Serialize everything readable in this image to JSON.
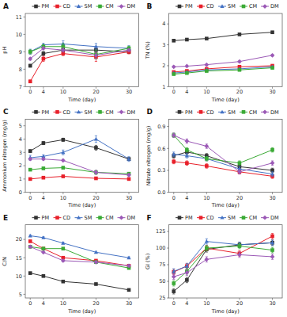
{
  "chart_data": [
    {
      "type": "line",
      "title": "A",
      "xlabel": "Time (day)",
      "ylabel": "pH",
      "x": [
        0,
        4,
        10,
        20,
        30
      ],
      "xlim": [
        -1.5,
        33
      ],
      "xticks": [
        0,
        4,
        10,
        20,
        30
      ],
      "ylim": [
        7.0,
        11.2
      ],
      "yticks": [
        7,
        8,
        9,
        10,
        11
      ],
      "grid": false,
      "legend": "top",
      "series": [
        {
          "name": "PM",
          "color": "#333333",
          "marker": "square",
          "values": [
            8.2,
            8.9,
            9.1,
            9.1,
            9.0
          ],
          "errors": [
            0.08,
            0.12,
            0.1,
            0.15,
            0.1
          ]
        },
        {
          "name": "CD",
          "color": "#e8202a",
          "marker": "square",
          "values": [
            7.3,
            8.6,
            8.9,
            8.7,
            9.0
          ],
          "errors": [
            0.08,
            0.15,
            0.12,
            0.25,
            0.12
          ]
        },
        {
          "name": "SM",
          "color": "#4472c4",
          "marker": "triangle",
          "values": [
            9.0,
            9.4,
            9.45,
            9.3,
            9.2
          ],
          "errors": [
            0.15,
            0.08,
            0.18,
            0.18,
            0.15
          ]
        },
        {
          "name": "CM",
          "color": "#3aaa35",
          "marker": "square",
          "values": [
            9.0,
            9.3,
            9.3,
            8.85,
            9.2
          ],
          "errors": [
            0.12,
            0.12,
            0.18,
            0.25,
            0.12
          ]
        },
        {
          "name": "DM",
          "color": "#9b59b6",
          "marker": "diamond",
          "values": [
            8.6,
            9.2,
            9.1,
            8.8,
            9.1
          ],
          "errors": [
            0.08,
            0.08,
            0.12,
            0.18,
            0.08
          ]
        }
      ]
    },
    {
      "type": "line",
      "title": "B",
      "xlabel": "Time (day)",
      "ylabel": "TN (%)",
      "x": [
        0,
        4,
        10,
        20,
        30
      ],
      "xlim": [
        -1.5,
        33
      ],
      "xticks": [
        0,
        4,
        10,
        20,
        30
      ],
      "ylim": [
        1.0,
        4.5
      ],
      "yticks": [
        1,
        2,
        3,
        4
      ],
      "grid": false,
      "legend": "top",
      "series": [
        {
          "name": "PM",
          "color": "#333333",
          "marker": "square",
          "values": [
            3.2,
            3.25,
            3.3,
            3.5,
            3.6
          ],
          "errors": [
            0.04,
            0.04,
            0.04,
            0.05,
            0.05
          ]
        },
        {
          "name": "CD",
          "color": "#e8202a",
          "marker": "square",
          "values": [
            1.7,
            1.75,
            1.85,
            1.95,
            2.0
          ],
          "errors": [
            0.04,
            0.04,
            0.04,
            0.04,
            0.04
          ]
        },
        {
          "name": "SM",
          "color": "#4472c4",
          "marker": "triangle",
          "values": [
            1.65,
            1.7,
            1.8,
            1.85,
            1.95
          ],
          "errors": [
            0.04,
            0.04,
            0.04,
            0.04,
            0.04
          ]
        },
        {
          "name": "CM",
          "color": "#3aaa35",
          "marker": "square",
          "values": [
            1.6,
            1.65,
            1.75,
            1.8,
            1.9
          ],
          "errors": [
            0.04,
            0.04,
            0.04,
            0.04,
            0.04
          ]
        },
        {
          "name": "DM",
          "color": "#9b59b6",
          "marker": "diamond",
          "values": [
            1.95,
            1.98,
            2.05,
            2.2,
            2.5
          ],
          "errors": [
            0.04,
            0.04,
            0.04,
            0.05,
            0.05
          ]
        }
      ]
    },
    {
      "type": "line",
      "title": "C",
      "xlabel": "Time (day)",
      "ylabel": "Ammonium nitrogen (mg/g)",
      "x": [
        0,
        4,
        10,
        20,
        30
      ],
      "xlim": [
        -1.5,
        33
      ],
      "xticks": [
        0,
        4,
        10,
        20,
        30
      ],
      "ylim": [
        0,
        5.5
      ],
      "yticks": [
        0,
        1,
        2,
        3,
        4,
        5
      ],
      "grid": false,
      "legend": "top",
      "series": [
        {
          "name": "PM",
          "color": "#333333",
          "marker": "square",
          "values": [
            3.1,
            3.7,
            3.95,
            3.35,
            2.5
          ],
          "errors": [
            0.1,
            0.12,
            0.12,
            0.18,
            0.1
          ]
        },
        {
          "name": "CD",
          "color": "#e8202a",
          "marker": "square",
          "values": [
            1.0,
            1.1,
            1.2,
            1.05,
            1.0
          ],
          "errors": [
            0.08,
            0.08,
            0.08,
            0.08,
            0.08
          ]
        },
        {
          "name": "SM",
          "color": "#4472c4",
          "marker": "triangle",
          "values": [
            2.6,
            2.7,
            3.0,
            4.0,
            2.5
          ],
          "errors": [
            0.18,
            0.12,
            0.18,
            0.25,
            0.18
          ]
        },
        {
          "name": "CM",
          "color": "#3aaa35",
          "marker": "square",
          "values": [
            1.7,
            1.8,
            1.85,
            1.5,
            1.4
          ],
          "errors": [
            0.08,
            0.08,
            0.08,
            0.15,
            0.08
          ]
        },
        {
          "name": "DM",
          "color": "#9b59b6",
          "marker": "diamond",
          "values": [
            2.5,
            2.5,
            2.4,
            1.5,
            1.3
          ],
          "errors": [
            0.08,
            0.08,
            0.08,
            0.15,
            0.12
          ]
        }
      ]
    },
    {
      "type": "line",
      "title": "D",
      "xlabel": "Time (day)",
      "ylabel": "Nitrate nitrogen (mg/g)",
      "x": [
        0,
        4,
        10,
        20,
        30
      ],
      "xlim": [
        -1.5,
        33
      ],
      "xticks": [
        0,
        4,
        10,
        20,
        30
      ],
      "ylim": [
        0.0,
        1.0
      ],
      "yticks": [
        {
          "value": 0.0,
          "label": "0.0"
        },
        0.3,
        0.6,
        0.9
      ],
      "grid": false,
      "legend": "top",
      "series": [
        {
          "name": "PM",
          "color": "#333333",
          "marker": "square",
          "values": [
            0.5,
            0.55,
            0.5,
            0.35,
            0.3
          ],
          "errors": [
            0.03,
            0.03,
            0.03,
            0.03,
            0.03
          ]
        },
        {
          "name": "CD",
          "color": "#e8202a",
          "marker": "square",
          "values": [
            0.42,
            0.4,
            0.36,
            0.28,
            0.22
          ],
          "errors": [
            0.03,
            0.03,
            0.03,
            0.03,
            0.03
          ]
        },
        {
          "name": "SM",
          "color": "#4472c4",
          "marker": "triangle",
          "values": [
            0.52,
            0.5,
            0.46,
            0.32,
            0.25
          ],
          "errors": [
            0.03,
            0.03,
            0.03,
            0.03,
            0.03
          ]
        },
        {
          "name": "CM",
          "color": "#3aaa35",
          "marker": "square",
          "values": [
            0.78,
            0.58,
            0.46,
            0.4,
            0.58
          ],
          "errors": [
            0.03,
            0.03,
            0.03,
            0.03,
            0.03
          ]
        },
        {
          "name": "DM",
          "color": "#9b59b6",
          "marker": "diamond",
          "values": [
            0.78,
            0.7,
            0.63,
            0.28,
            0.4
          ],
          "errors": [
            0.03,
            0.03,
            0.03,
            0.03,
            0.03
          ]
        }
      ]
    },
    {
      "type": "line",
      "title": "E",
      "xlabel": "Time (day)",
      "ylabel": "C/N",
      "x": [
        0,
        4,
        10,
        20,
        30
      ],
      "xlim": [
        -1.5,
        33
      ],
      "xticks": [
        0,
        4,
        10,
        20,
        30
      ],
      "ylim": [
        4,
        24
      ],
      "yticks": [
        5,
        10,
        15,
        20
      ],
      "grid": false,
      "legend": "top",
      "series": [
        {
          "name": "PM",
          "color": "#333333",
          "marker": "square",
          "values": [
            10.8,
            10.0,
            8.5,
            7.8,
            6.2
          ],
          "errors": [
            0.25,
            0.25,
            0.25,
            0.25,
            0.25
          ]
        },
        {
          "name": "CD",
          "color": "#e8202a",
          "marker": "square",
          "values": [
            19.5,
            17.5,
            15.0,
            14.2,
            12.8
          ],
          "errors": [
            0.25,
            0.25,
            0.25,
            0.25,
            0.25
          ]
        },
        {
          "name": "SM",
          "color": "#4472c4",
          "marker": "triangle",
          "values": [
            21.0,
            20.5,
            19.0,
            16.5,
            15.0
          ],
          "errors": [
            0.25,
            0.25,
            0.25,
            0.25,
            0.25
          ]
        },
        {
          "name": "CM",
          "color": "#3aaa35",
          "marker": "square",
          "values": [
            18.0,
            17.5,
            17.5,
            13.8,
            12.2
          ],
          "errors": [
            0.25,
            0.25,
            0.25,
            0.25,
            0.25
          ]
        },
        {
          "name": "DM",
          "color": "#9b59b6",
          "marker": "diamond",
          "values": [
            18.0,
            16.5,
            14.2,
            13.8,
            12.8
          ],
          "errors": [
            0.25,
            0.25,
            0.25,
            0.25,
            0.25
          ]
        }
      ]
    },
    {
      "type": "line",
      "title": "F",
      "xlabel": "Time (day)",
      "ylabel": "GI (%)",
      "x": [
        0,
        4,
        10,
        20,
        30
      ],
      "xlim": [
        -1.5,
        33
      ],
      "xticks": [
        0,
        4,
        10,
        20,
        30
      ],
      "ylim": [
        25,
        135
      ],
      "yticks": [
        25,
        50,
        75,
        100,
        125
      ],
      "grid": false,
      "legend": "top",
      "series": [
        {
          "name": "PM",
          "color": "#333333",
          "marker": "square",
          "values": [
            35,
            52,
            98,
            105,
            108
          ],
          "errors": [
            4,
            4,
            4,
            4,
            4
          ]
        },
        {
          "name": "CD",
          "color": "#e8202a",
          "marker": "square",
          "values": [
            64,
            73,
            100,
            92,
            118
          ],
          "errors": [
            4,
            4,
            4,
            4,
            4
          ]
        },
        {
          "name": "SM",
          "color": "#4472c4",
          "marker": "triangle",
          "values": [
            65,
            73,
            110,
            105,
            108
          ],
          "errors": [
            4,
            4,
            4,
            4,
            4
          ]
        },
        {
          "name": "CM",
          "color": "#3aaa35",
          "marker": "square",
          "values": [
            47,
            65,
            100,
            103,
            97
          ],
          "errors": [
            4,
            4,
            4,
            4,
            4
          ]
        },
        {
          "name": "DM",
          "color": "#9b59b6",
          "marker": "diamond",
          "values": [
            57,
            63,
            83,
            90,
            87
          ],
          "errors": [
            4,
            4,
            4,
            4,
            4
          ]
        }
      ]
    }
  ]
}
